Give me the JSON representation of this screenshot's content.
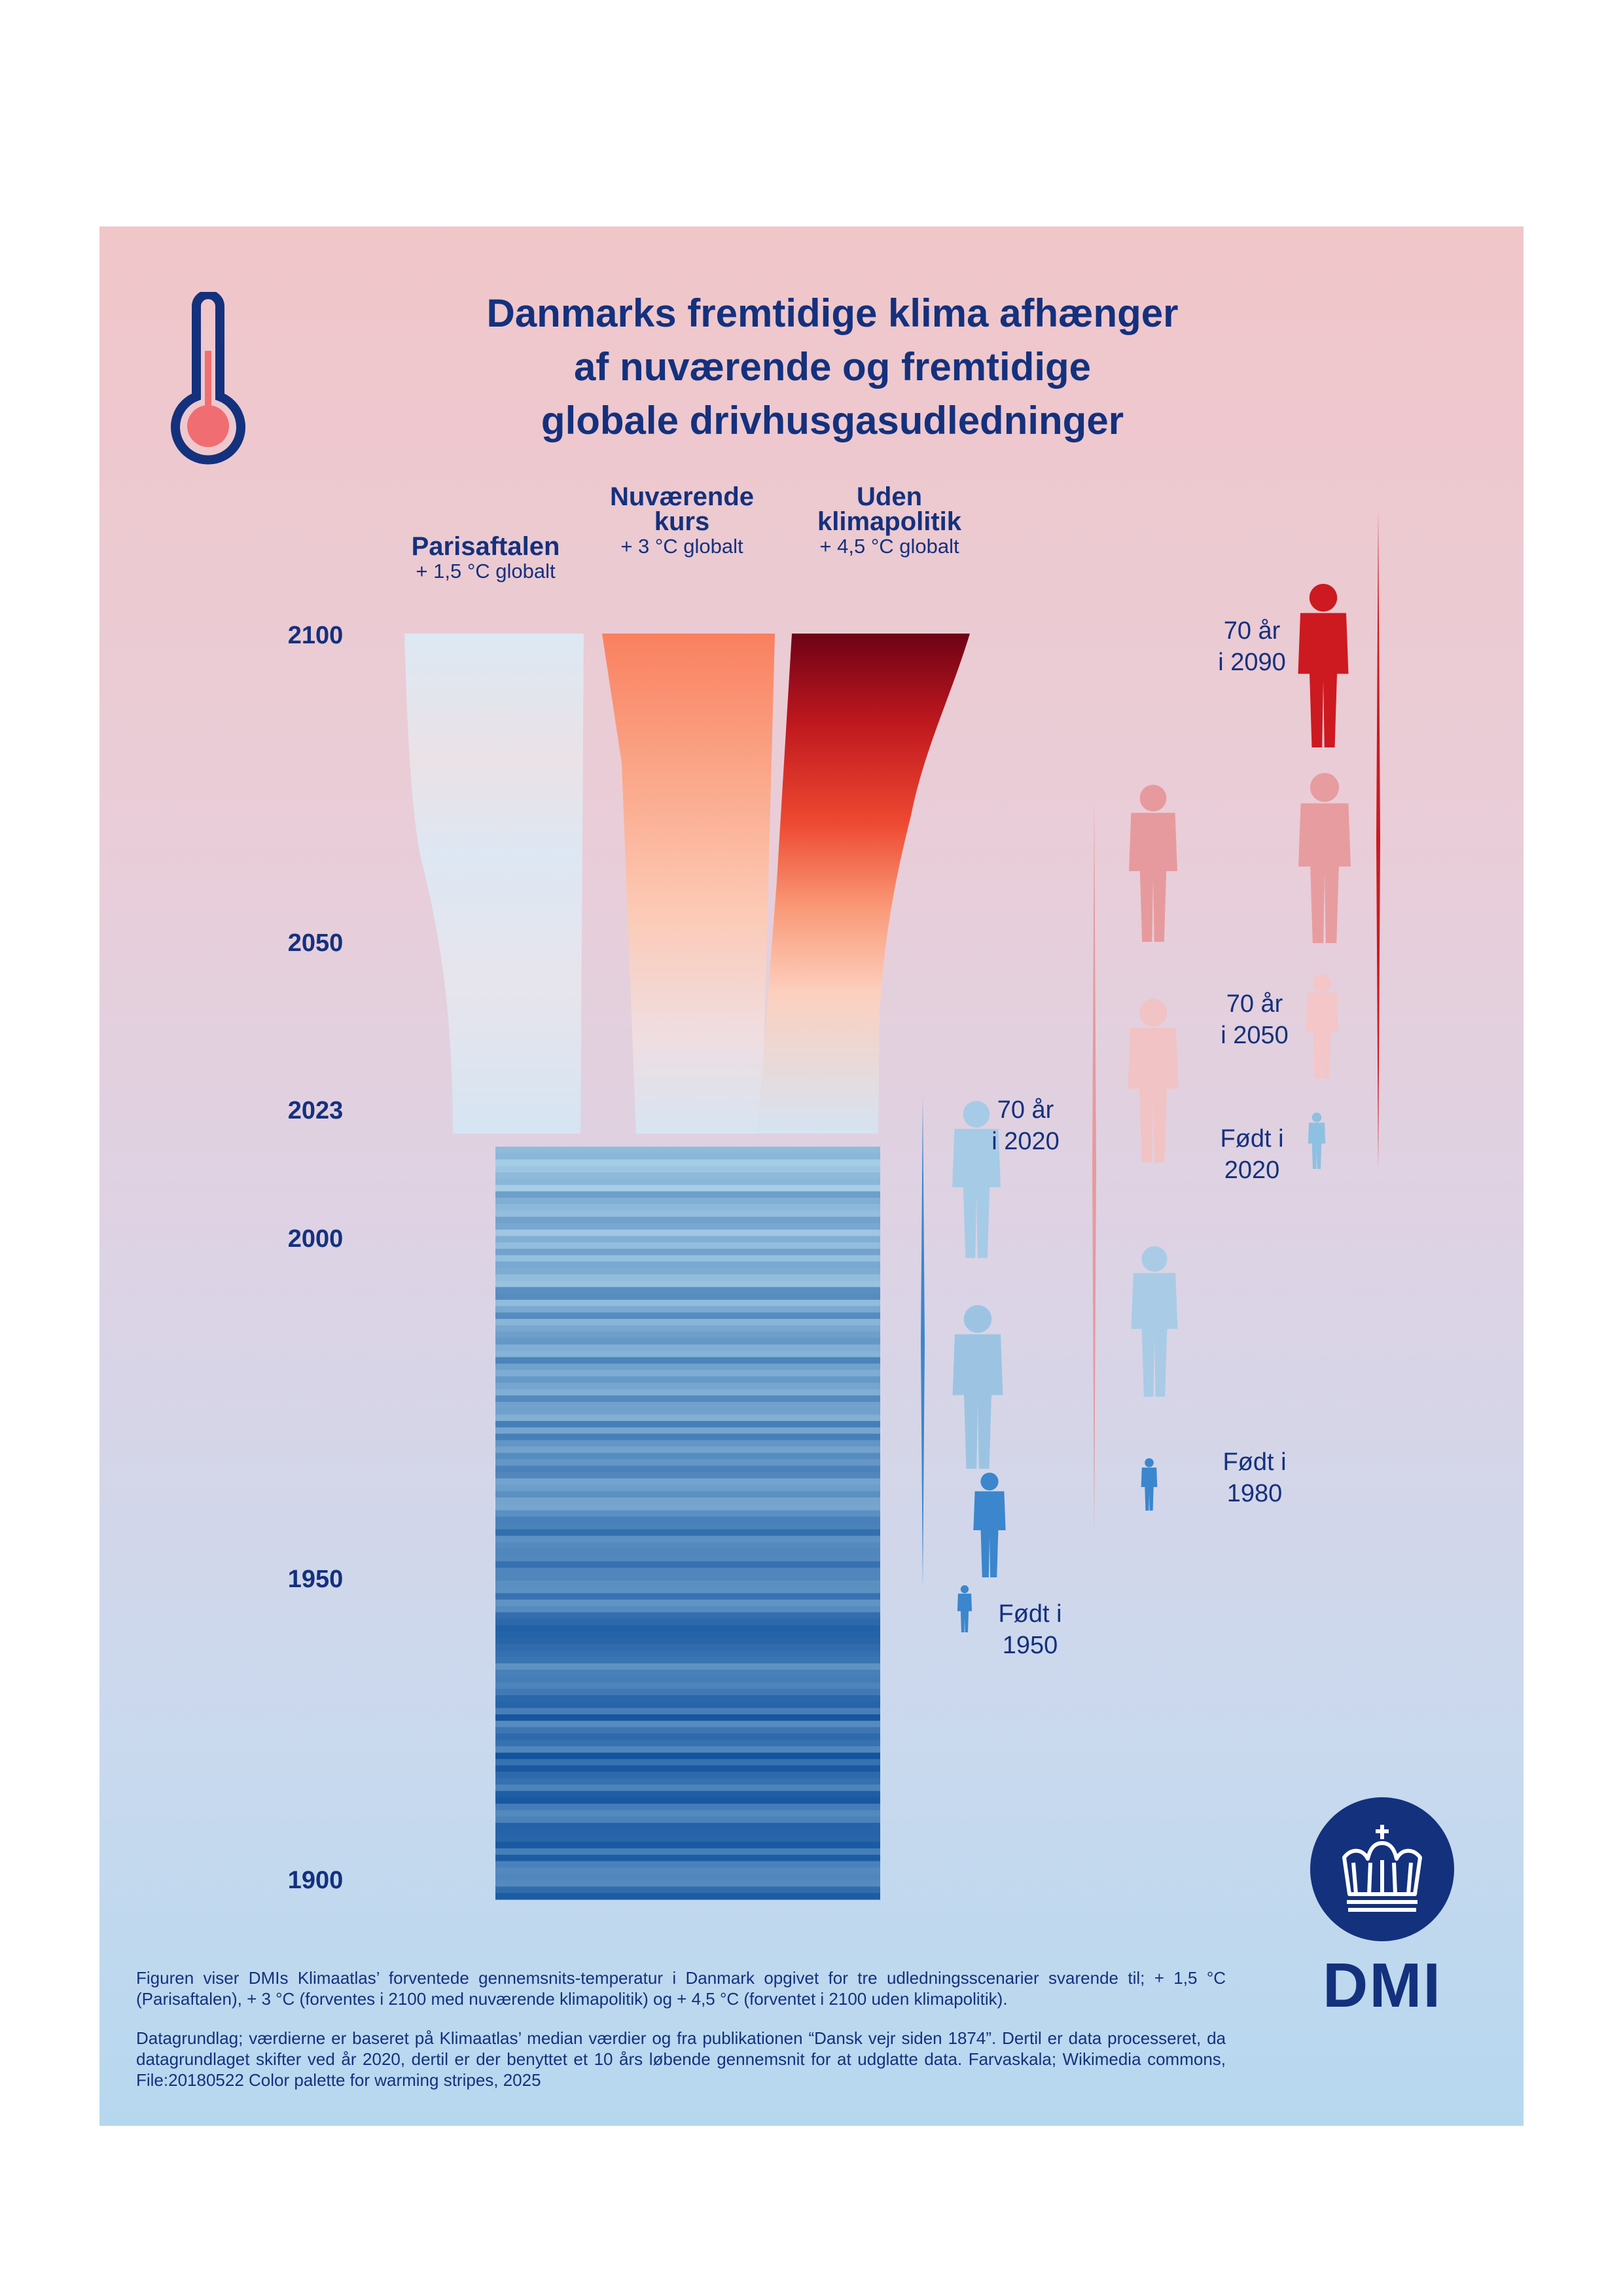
{
  "title_lines": [
    "Danmarks fremtidige klima afhænger",
    "af nuværende og fremtidige",
    "globale drivhusgasudledninger"
  ],
  "scenarios": [
    {
      "name_lines": [
        "Parisaftalen"
      ],
      "subtitle": "+ 1,5 °C globalt",
      "stripe_color_top": "#d6e6f5"
    },
    {
      "name_lines": [
        "Nuværende",
        "kurs"
      ],
      "subtitle": "+ 3 °C globalt",
      "stripe_color_top": "#f78e6a"
    },
    {
      "name_lines": [
        "Uden",
        "klimapolitik"
      ],
      "subtitle": "+ 4,5 °C globalt",
      "stripe_color_top": "#7f0a1a"
    }
  ],
  "year_labels": [
    "2100",
    "2050",
    "2023",
    "2000",
    "1950",
    "1900"
  ],
  "generations": [
    {
      "born_label": [
        "Født i",
        "1950"
      ],
      "age70_label": [
        "70 år",
        "i 2020"
      ],
      "color": "#3b86cc"
    },
    {
      "born_label": [
        "Født i",
        "1980"
      ],
      "age70_label": [
        "70 år",
        "i 2050"
      ],
      "color": "#e79a9d"
    },
    {
      "born_label": [
        "Født i",
        "2020"
      ],
      "age70_label": [
        "70 år",
        "i 2090"
      ],
      "color": "#cc1a20"
    }
  ],
  "colors": {
    "text": "#14317e",
    "thermometer_fill": "#f06e72",
    "historic_blue_dark": "#0d4f9c",
    "historic_blue_light": "#a6cde6"
  },
  "footnote_paragraphs": [
    "Figuren viser DMIs Klimaatlas’ forventede gennemsnits-temperatur i Danmark opgivet for tre udledningsscenarier svarende til; + 1,5 °C (Parisaftalen), + 3 °C (forventes i 2100 med nuværende klimapolitik) og + 4,5 °C (forventet i 2100 uden klimapolitik).",
    "Datagrundlag; værdierne er baseret på Klimaatlas’ median værdier og fra publikationen “Dansk vejr siden 1874”. Dertil er data processeret, da datagrundlaget skifter ved år 2020, dertil er der benyttet et 10 års løbende gennemsnit for at udglatte data. Farvaskala; Wikimedia commons, File:20180522 Color palette for warming stripes, 2025"
  ],
  "logo": {
    "text": "DMI",
    "icon": "crown-icon"
  }
}
